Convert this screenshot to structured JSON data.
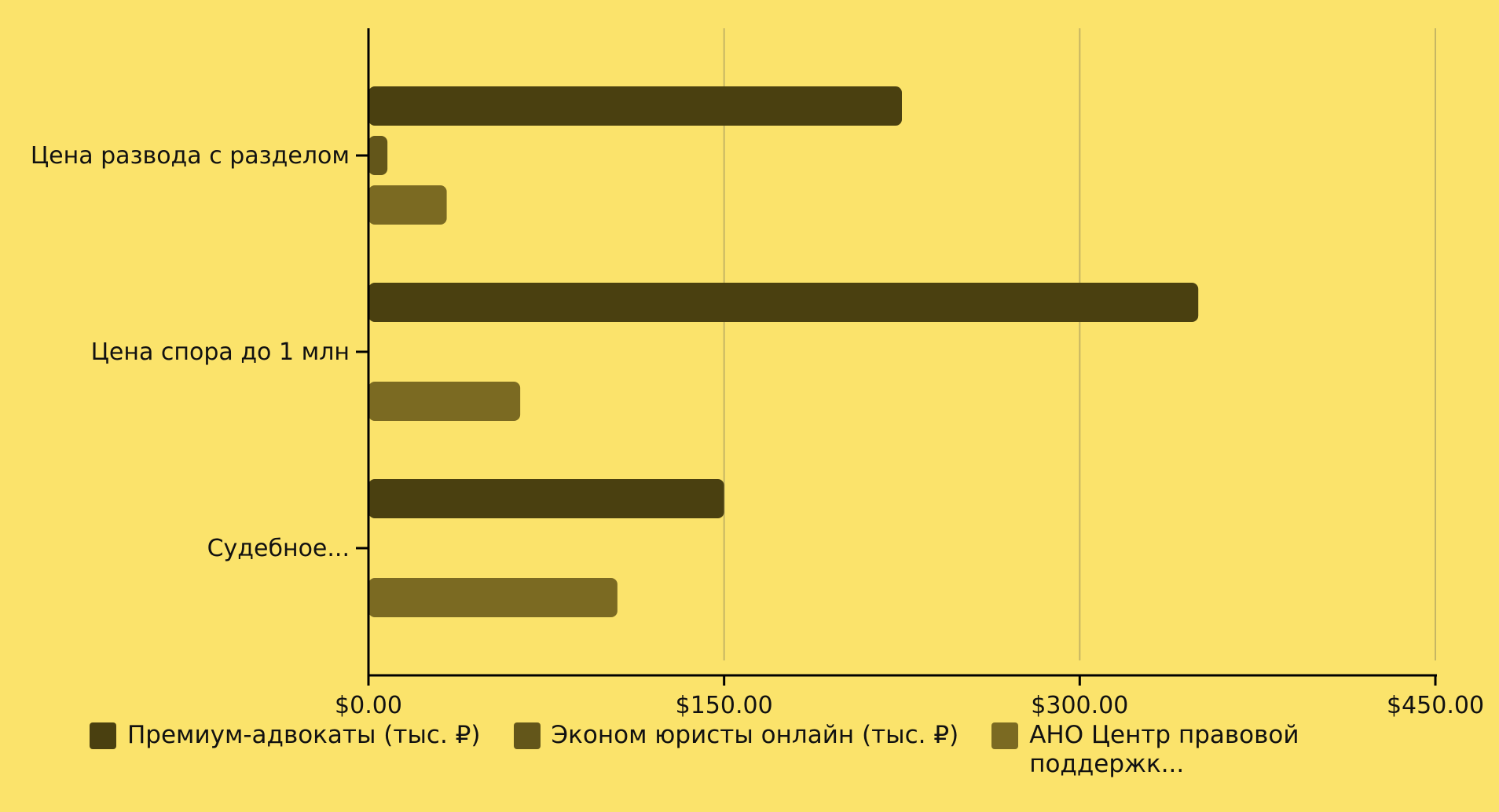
{
  "chart_data": {
    "type": "bar",
    "orientation": "horizontal",
    "categories": [
      "Цена развода с разделом",
      "Цена спора до 1 млн",
      "Судебное..."
    ],
    "series": [
      {
        "name": "Премиум-адвокаты (тыс. ₽)",
        "values": [
          225,
          350,
          150
        ],
        "color": "#4a4010"
      },
      {
        "name": "Эконом юристы онлайн (тыс. ₽)",
        "values": [
          8,
          0,
          0
        ],
        "color": "#63561a"
      },
      {
        "name": "АНО Центр правовой поддержк...",
        "values": [
          33,
          64,
          105
        ],
        "color": "#7b6a22"
      }
    ],
    "xlim": [
      0,
      450
    ],
    "xticks": [
      0,
      150,
      300,
      450
    ],
    "xtick_labels": [
      "$0.00",
      "$150.00",
      "$300.00",
      "$450.00"
    ],
    "title": "",
    "xlabel": "",
    "ylabel": "",
    "grid": "vertical",
    "legend_position": "bottom"
  }
}
